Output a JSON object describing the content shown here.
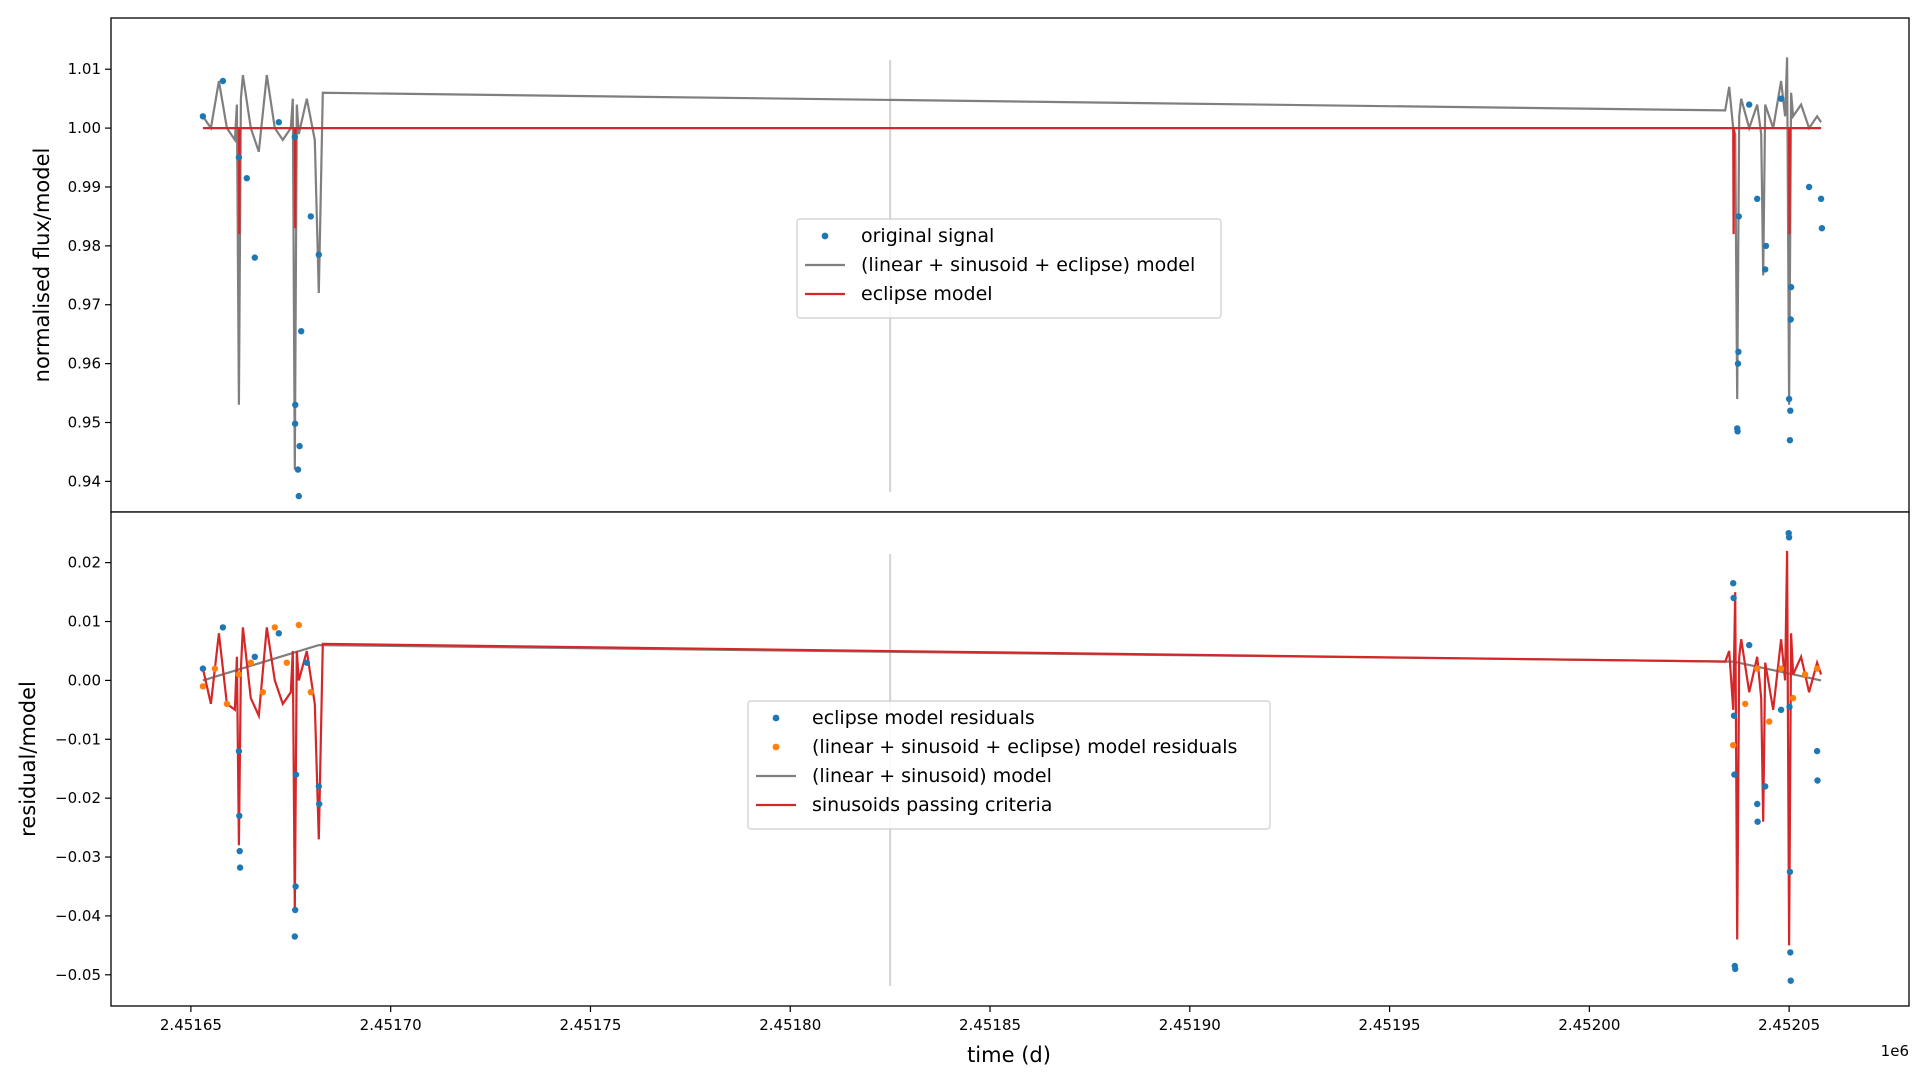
{
  "chart_data": [
    {
      "type": "line",
      "panel": "top",
      "ylabel": "normalised flux/model",
      "xlim": [
        2.45163,
        2.45208
      ],
      "ylim": [
        0.9348,
        1.0187
      ],
      "yticks": [
        0.94,
        0.95,
        0.96,
        0.97,
        0.98,
        0.99,
        1.0,
        1.01
      ],
      "ytick_labels": [
        "0.94",
        "0.95",
        "0.96",
        "0.97",
        "0.98",
        "0.99",
        "1.00",
        "1.01"
      ],
      "legend_position": "center",
      "colors": {
        "signal": "#1f77b4",
        "full_model": "#7f7f7f",
        "eclipse_model": "#d62728",
        "separator": "#d3d3d3"
      },
      "series": [
        {
          "name": "original signal",
          "kind": "points",
          "x": [
            2.451653,
            2.451658,
            2.451662,
            2.451664,
            2.451666,
            2.451672,
            2.451676,
            2.45167608,
            2.45167612,
            2.4516768,
            2.451677,
            2.4516772,
            2.4516776,
            2.45168,
            2.451682,
            2.452037,
            2.4520371,
            2.4520372,
            2.4520373,
            2.4520374,
            2.45204,
            2.452042,
            2.452044,
            2.4520442,
            2.452048,
            2.45205,
            2.4520502,
            2.4520503,
            2.4520504,
            2.4520505,
            2.452055,
            2.452058,
            2.4520582
          ],
          "y": [
            1.002,
            1.008,
            0.995,
            0.9915,
            0.978,
            1.001,
            0.9985,
            0.9498,
            0.953,
            0.942,
            0.9375,
            0.946,
            0.9655,
            0.985,
            0.9785,
            0.949,
            0.9485,
            0.96,
            0.962,
            0.985,
            1.004,
            0.988,
            0.976,
            0.98,
            1.005,
            0.954,
            0.947,
            0.952,
            0.9675,
            0.973,
            0.99,
            0.988,
            0.983
          ]
        },
        {
          "name": "(linear + sinusoid + eclipse) model",
          "kind": "line",
          "x": [
            2.451653,
            2.451655,
            2.451657,
            2.451659,
            2.451661,
            2.4516615,
            2.451662,
            2.4516625,
            2.451663,
            2.451665,
            2.451667,
            2.451669,
            2.451671,
            2.451673,
            2.451675,
            2.4516755,
            2.451676,
            2.4516765,
            2.451677,
            2.451679,
            2.451681,
            2.451682,
            2.451683,
            2.452034,
            2.452035,
            2.452036,
            2.4520365,
            2.452037,
            2.4520375,
            2.452038,
            2.45204,
            2.452042,
            2.452043,
            2.4520435,
            2.452044,
            2.452046,
            2.452048,
            2.452049,
            2.4520495,
            2.45205,
            2.4520505,
            2.452051,
            2.452053,
            2.452055,
            2.452057,
            2.452058
          ],
          "y": [
            1.002,
            1.0,
            1.008,
            1.0,
            0.998,
            1.004,
            0.953,
            1.005,
            1.009,
            1.0,
            0.996,
            1.009,
            1.0,
            0.998,
            1.0,
            1.005,
            0.942,
            1.004,
            0.999,
            1.005,
            0.998,
            0.972,
            1.006,
            1.003,
            1.007,
            1.0,
            0.999,
            0.954,
            1.002,
            1.005,
            1.0,
            1.004,
            0.999,
            0.975,
            1.004,
            1.0,
            1.008,
            1.002,
            1.012,
            0.953,
            1.006,
            1.002,
            1.004,
            1.0,
            1.002,
            1.001
          ]
        },
        {
          "name": "eclipse model",
          "kind": "line",
          "x": [
            2.451653,
            2.451662,
            2.4516621,
            2.4516622,
            2.451676,
            2.4516761,
            2.4516762,
            2.452036,
            2.4520361,
            2.4520362,
            2.45205,
            2.4520501,
            2.4520502,
            2.452058
          ],
          "y": [
            1.0,
            1.0,
            0.982,
            1.0,
            1.0,
            0.983,
            1.0,
            1.0,
            0.982,
            1.0,
            1.0,
            0.982,
            1.0,
            1.0
          ]
        }
      ]
    },
    {
      "type": "line",
      "panel": "bottom",
      "xlabel": "time (d)",
      "ylabel": "residual/model",
      "x_offset_label": "1e6",
      "xlim": [
        2.45163,
        2.45208
      ],
      "ylim": [
        -0.0553,
        0.0286
      ],
      "xticks": [
        2.45165,
        2.4517,
        2.45175,
        2.4518,
        2.45185,
        2.4519,
        2.45195,
        2.452,
        2.45205
      ],
      "xtick_labels": [
        "2.45165",
        "2.45170",
        "2.45175",
        "2.45180",
        "2.45185",
        "2.45190",
        "2.45195",
        "2.45200",
        "2.45205"
      ],
      "yticks": [
        -0.05,
        -0.04,
        -0.03,
        -0.02,
        -0.01,
        0.0,
        0.01,
        0.02
      ],
      "ytick_labels": [
        "−0.05",
        "−0.04",
        "−0.03",
        "−0.02",
        "−0.01",
        "0.00",
        "0.01",
        "0.02"
      ],
      "legend_position": "center",
      "colors": {
        "eclipse_residuals": "#1f77b4",
        "full_residuals": "#ff7f0e",
        "sinusoid_model": "#7f7f7f",
        "sinusoids_passing": "#d62728",
        "separator": "#d3d3d3"
      },
      "series": [
        {
          "name": "eclipse model residuals",
          "kind": "points",
          "x": [
            2.451653,
            2.451658,
            2.451662,
            2.4516621,
            2.4516622,
            2.4516623,
            2.451666,
            2.451672,
            2.451676,
            2.4516761,
            2.4516762,
            2.4516763,
            2.451679,
            2.451682,
            2.4516821,
            2.452036,
            2.4520361,
            2.4520362,
            2.4520363,
            2.4520364,
            2.4520365,
            2.45204,
            2.452042,
            2.4520421,
            2.452044,
            2.452048,
            2.4520499,
            2.45205,
            2.4520501,
            2.4520502,
            2.4520503,
            2.4520504,
            2.452057,
            2.4520571
          ],
          "y": [
            0.002,
            0.009,
            -0.012,
            -0.023,
            -0.029,
            -0.0318,
            0.004,
            0.008,
            -0.0435,
            -0.039,
            -0.035,
            -0.016,
            0.003,
            -0.018,
            -0.021,
            0.0165,
            0.014,
            -0.006,
            -0.016,
            -0.0485,
            -0.049,
            0.006,
            -0.021,
            -0.024,
            -0.018,
            -0.005,
            0.025,
            0.0243,
            -0.0045,
            -0.0325,
            -0.0462,
            -0.051,
            -0.012,
            -0.017
          ]
        },
        {
          "name": "(linear + sinusoid + eclipse) model residuals",
          "kind": "points",
          "x": [
            2.451653,
            2.451656,
            2.451659,
            2.451662,
            2.451665,
            2.451668,
            2.451671,
            2.451674,
            2.451677,
            2.45168,
            2.452036,
            2.452039,
            2.452042,
            2.452045,
            2.452048,
            2.452051,
            2.452054,
            2.452057
          ],
          "y": [
            -0.001,
            0.002,
            -0.004,
            0.001,
            0.003,
            -0.002,
            0.009,
            0.003,
            0.0094,
            -0.002,
            -0.011,
            -0.004,
            0.002,
            -0.007,
            0.002,
            -0.003,
            0.001,
            0.002
          ]
        },
        {
          "name": "(linear + sinusoid) model",
          "kind": "line",
          "x": [
            2.451653,
            2.451682,
            2.452036,
            2.452058
          ],
          "y": [
            0.0,
            0.006,
            0.0032,
            0.0
          ]
        },
        {
          "name": "sinusoids passing criteria",
          "kind": "line",
          "x": [
            2.451653,
            2.451655,
            2.451657,
            2.451659,
            2.451661,
            2.4516615,
            2.451662,
            2.4516625,
            2.451663,
            2.451665,
            2.451667,
            2.451669,
            2.451671,
            2.451673,
            2.451675,
            2.4516755,
            2.451676,
            2.4516765,
            2.451677,
            2.451679,
            2.451681,
            2.451682,
            2.451683,
            2.452034,
            2.452035,
            2.452036,
            2.4520365,
            2.452037,
            2.4520375,
            2.452038,
            2.45204,
            2.452042,
            2.452043,
            2.4520435,
            2.452044,
            2.452046,
            2.452048,
            2.452049,
            2.4520495,
            2.45205,
            2.4520505,
            2.452051,
            2.452053,
            2.452055,
            2.452057,
            2.452058
          ],
          "y": [
            0.002,
            -0.004,
            0.008,
            -0.004,
            -0.005,
            0.004,
            -0.028,
            0.002,
            0.009,
            -0.003,
            -0.006,
            0.009,
            0.0,
            -0.004,
            -0.002,
            0.005,
            -0.039,
            0.005,
            0.0,
            0.005,
            -0.004,
            -0.027,
            0.0062,
            0.0032,
            0.005,
            -0.005,
            0.015,
            -0.044,
            0.004,
            0.007,
            -0.002,
            0.004,
            -0.003,
            -0.024,
            0.003,
            -0.005,
            0.007,
            0.0,
            0.022,
            -0.045,
            0.008,
            0.001,
            0.004,
            -0.002,
            0.003,
            0.001
          ]
        }
      ]
    }
  ]
}
